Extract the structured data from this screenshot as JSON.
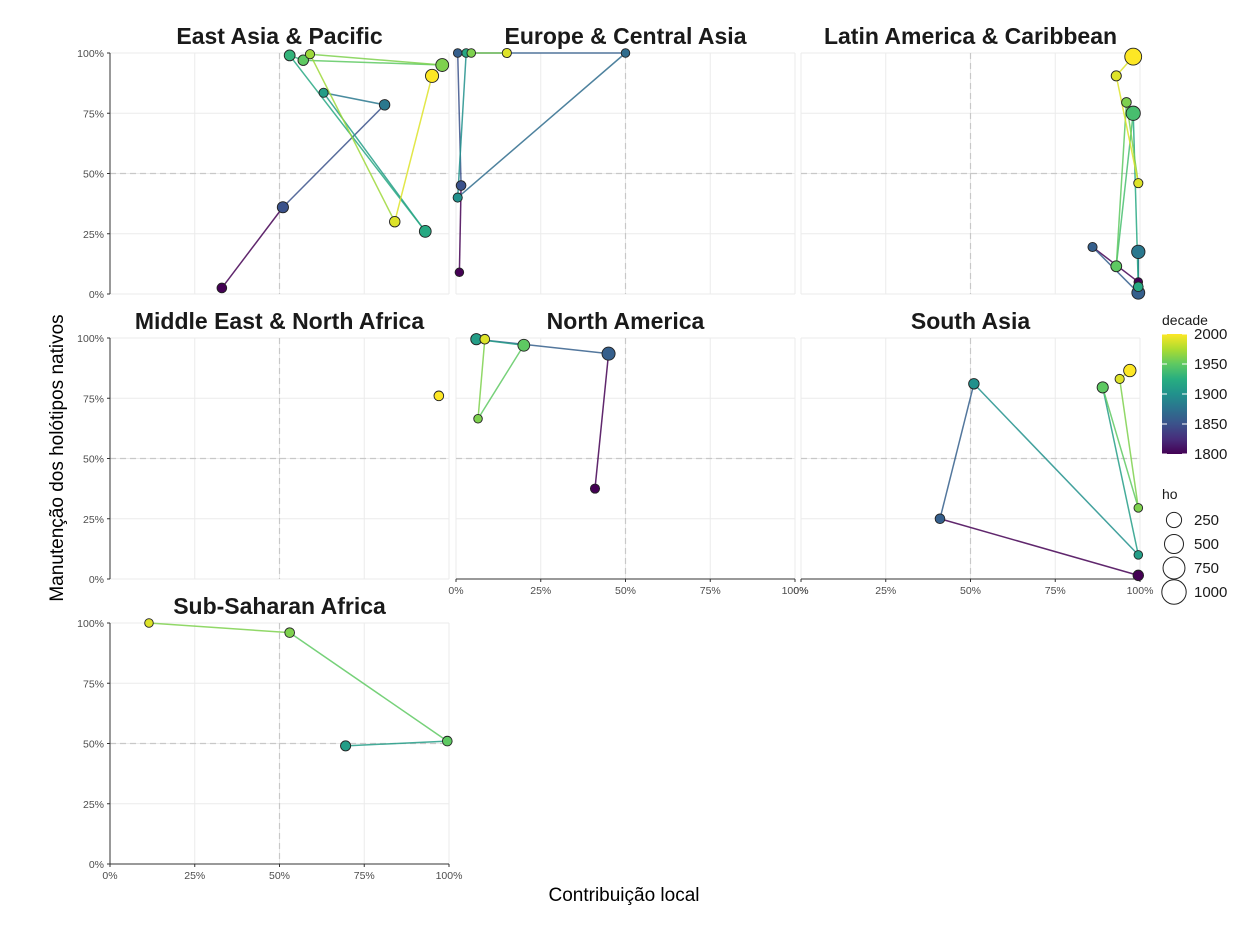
{
  "chart_data": {
    "type": "scatter",
    "xlabel": "Contribuição local",
    "ylabel": "Manutenção dos holótipos nativos",
    "x_ticks": [
      "0%",
      "25%",
      "50%",
      "75%",
      "100%"
    ],
    "y_ticks": [
      "0%",
      "25%",
      "50%",
      "75%",
      "100%"
    ],
    "xlim": [
      0,
      1
    ],
    "ylim": [
      0,
      1
    ],
    "reference_lines": {
      "x": 0.5,
      "y": 0.5
    },
    "grid": true,
    "legend_position": "right",
    "color_legend": {
      "title": "decade",
      "min": 1800,
      "max": 2000,
      "ticks": [
        "2000",
        "1950",
        "1900",
        "1850",
        "1800"
      ]
    },
    "size_legend": {
      "title": "ho",
      "labels": [
        "250",
        "500",
        "750",
        "1000"
      ],
      "values": [
        250,
        500,
        750,
        1000
      ]
    },
    "panels": [
      {
        "title": "East Asia & Pacific",
        "points": [
          {
            "decade": 1800,
            "x": 0.33,
            "y": 0.025,
            "ho": 40
          },
          {
            "decade": 1850,
            "x": 0.51,
            "y": 0.36,
            "ho": 80
          },
          {
            "decade": 1880,
            "x": 0.81,
            "y": 0.785,
            "ho": 60
          },
          {
            "decade": 1910,
            "x": 0.63,
            "y": 0.835,
            "ho": 30
          },
          {
            "decade": 1930,
            "x": 0.53,
            "y": 0.99,
            "ho": 70
          },
          {
            "decade": 1950,
            "x": 0.57,
            "y": 0.97,
            "ho": 60
          },
          {
            "decade": 1970,
            "x": 0.59,
            "y": 0.995,
            "ho": 30
          },
          {
            "decade": 1990,
            "x": 0.84,
            "y": 0.3,
            "ho": 60
          },
          {
            "decade": 2000,
            "x": 0.95,
            "y": 0.905,
            "ho": 150
          },
          {
            "decade": 1920,
            "x": 0.93,
            "y": 0.26,
            "ho": 100
          },
          {
            "decade": 1960,
            "x": 0.98,
            "y": 0.95,
            "ho": 140
          }
        ]
      },
      {
        "title": "Europe & Central Asia",
        "points": [
          {
            "decade": 1800,
            "x": 0.01,
            "y": 0.09,
            "ho": 20
          },
          {
            "decade": 1850,
            "x": 0.015,
            "y": 0.45,
            "ho": 40
          },
          {
            "decade": 1900,
            "x": 0.005,
            "y": 0.4,
            "ho": 30
          },
          {
            "decade": 1860,
            "x": 0.005,
            "y": 1.0,
            "ho": 20
          },
          {
            "decade": 1870,
            "x": 0.5,
            "y": 1.0,
            "ho": 20
          },
          {
            "decade": 1920,
            "x": 0.03,
            "y": 1.0,
            "ho": 20
          },
          {
            "decade": 1960,
            "x": 0.045,
            "y": 1.0,
            "ho": 20
          },
          {
            "decade": 1990,
            "x": 0.15,
            "y": 1.0,
            "ho": 30
          }
        ]
      },
      {
        "title": "Latin America & Caribbean",
        "points": [
          {
            "decade": 1800,
            "x": 0.995,
            "y": 0.05,
            "ho": 20
          },
          {
            "decade": 1860,
            "x": 0.86,
            "y": 0.195,
            "ho": 30
          },
          {
            "decade": 1880,
            "x": 0.995,
            "y": 0.175,
            "ho": 160
          },
          {
            "decade": 1920,
            "x": 0.995,
            "y": 0.03,
            "ho": 40
          },
          {
            "decade": 1950,
            "x": 0.93,
            "y": 0.115,
            "ho": 70
          },
          {
            "decade": 1990,
            "x": 0.995,
            "y": 0.46,
            "ho": 30
          },
          {
            "decade": 1940,
            "x": 0.98,
            "y": 0.75,
            "ho": 200
          },
          {
            "decade": 1960,
            "x": 0.96,
            "y": 0.795,
            "ho": 40
          },
          {
            "decade": 1990,
            "x": 0.93,
            "y": 0.905,
            "ho": 50
          },
          {
            "decade": 2000,
            "x": 0.98,
            "y": 0.985,
            "ho": 350
          },
          {
            "decade": 1860,
            "x": 0.995,
            "y": 0.005,
            "ho": 140
          }
        ]
      },
      {
        "title": "Middle East & North Africa",
        "points": [
          {
            "decade": 2000,
            "x": 0.97,
            "y": 0.76,
            "ho": 40
          }
        ]
      },
      {
        "title": "North America",
        "points": [
          {
            "decade": 1800,
            "x": 0.41,
            "y": 0.375,
            "ho": 30
          },
          {
            "decade": 1860,
            "x": 0.45,
            "y": 0.935,
            "ho": 150
          },
          {
            "decade": 1950,
            "x": 0.2,
            "y": 0.97,
            "ho": 100
          },
          {
            "decade": 1910,
            "x": 0.06,
            "y": 0.995,
            "ho": 80
          },
          {
            "decade": 1990,
            "x": 0.085,
            "y": 0.995,
            "ho": 40
          },
          {
            "decade": 1960,
            "x": 0.065,
            "y": 0.665,
            "ho": 20
          }
        ]
      },
      {
        "title": "South Asia",
        "points": [
          {
            "decade": 1800,
            "x": 0.995,
            "y": 0.015,
            "ho": 60
          },
          {
            "decade": 1860,
            "x": 0.41,
            "y": 0.25,
            "ho": 40
          },
          {
            "decade": 1900,
            "x": 0.51,
            "y": 0.81,
            "ho": 60
          },
          {
            "decade": 1950,
            "x": 0.89,
            "y": 0.795,
            "ho": 80
          },
          {
            "decade": 1990,
            "x": 0.94,
            "y": 0.83,
            "ho": 30
          },
          {
            "decade": 2000,
            "x": 0.97,
            "y": 0.865,
            "ho": 120
          },
          {
            "decade": 1960,
            "x": 0.995,
            "y": 0.295,
            "ho": 20
          },
          {
            "decade": 1910,
            "x": 0.995,
            "y": 0.1,
            "ho": 20
          }
        ]
      },
      {
        "title": "Sub-Saharan Africa",
        "points": [
          {
            "decade": 1990,
            "x": 0.115,
            "y": 1.0,
            "ho": 20
          },
          {
            "decade": 1960,
            "x": 0.53,
            "y": 0.96,
            "ho": 40
          },
          {
            "decade": 1910,
            "x": 0.695,
            "y": 0.49,
            "ho": 50
          },
          {
            "decade": 1950,
            "x": 0.995,
            "y": 0.51,
            "ho": 40
          }
        ]
      }
    ]
  }
}
